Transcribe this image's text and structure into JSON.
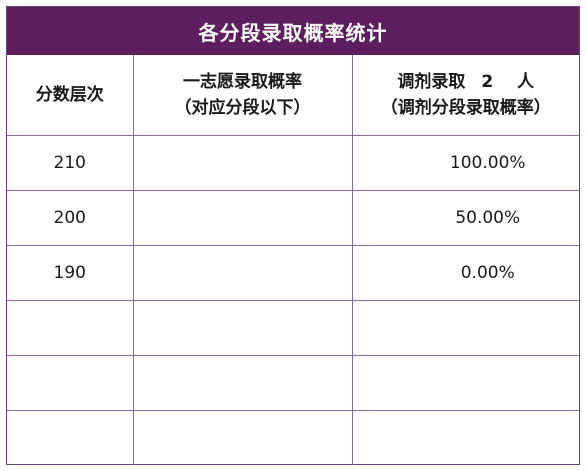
{
  "title": "各分段录取概率统计",
  "header": {
    "col1": "分数层次",
    "col2_line1": "一志愿录取概率",
    "col2_line2": "（对应分段以下）",
    "col3_prefix": "调剂录取",
    "col3_number": "2",
    "col3_suffix": "人",
    "col3_line2": "（调剂分段录取概率）"
  },
  "rows": [
    {
      "score": "210",
      "first_choice": "",
      "adjusted": "100.00%"
    },
    {
      "score": "200",
      "first_choice": "",
      "adjusted": "50.00%"
    },
    {
      "score": "190",
      "first_choice": "",
      "adjusted": "0.00%"
    },
    {
      "score": "",
      "first_choice": "",
      "adjusted": ""
    },
    {
      "score": "",
      "first_choice": "",
      "adjusted": ""
    },
    {
      "score": "",
      "first_choice": "",
      "adjusted": ""
    }
  ]
}
